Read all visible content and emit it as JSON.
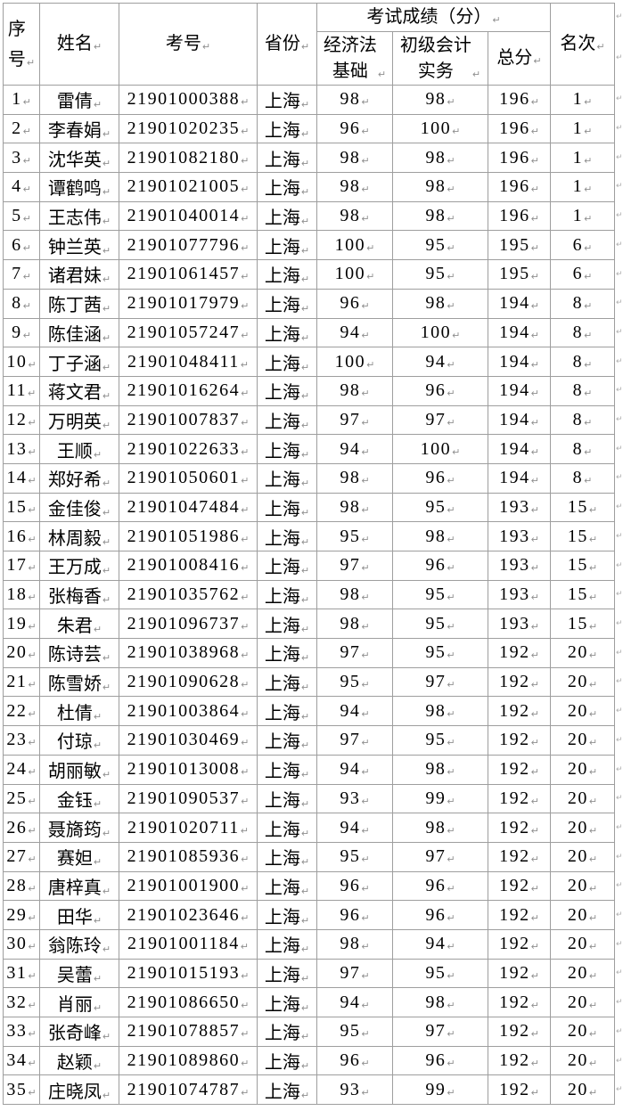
{
  "page": {
    "background_color": "#ffffff",
    "text_color": "#000000",
    "border_color": "#9e9e9e"
  },
  "table": {
    "mark_glyph": "↵",
    "mark_color": "#8f8f8f",
    "header": {
      "index": "序\n号",
      "name": "姓名",
      "exam_no": "考号",
      "province": "省份",
      "score_group": "考试成绩（分）",
      "econ_law": "经济法\n基础",
      "accounting": "初级会计\n实务",
      "total": "总分",
      "rank": "名次"
    },
    "rows": [
      [
        1,
        "雷倩",
        "21901000388",
        "上海",
        98,
        98,
        196,
        1
      ],
      [
        2,
        "李春娟",
        "21901020235",
        "上海",
        96,
        100,
        196,
        1
      ],
      [
        3,
        "沈华英",
        "21901082180",
        "上海",
        98,
        98,
        196,
        1
      ],
      [
        4,
        "谭鹤鸣",
        "21901021005",
        "上海",
        98,
        98,
        196,
        1
      ],
      [
        5,
        "王志伟",
        "21901040014",
        "上海",
        98,
        98,
        196,
        1
      ],
      [
        6,
        "钟兰英",
        "21901077796",
        "上海",
        100,
        95,
        195,
        6
      ],
      [
        7,
        "诸君妹",
        "21901061457",
        "上海",
        100,
        95,
        195,
        6
      ],
      [
        8,
        "陈丁茜",
        "21901017979",
        "上海",
        96,
        98,
        194,
        8
      ],
      [
        9,
        "陈佳涵",
        "21901057247",
        "上海",
        94,
        100,
        194,
        8
      ],
      [
        10,
        "丁子涵",
        "21901048411",
        "上海",
        100,
        94,
        194,
        8
      ],
      [
        11,
        "蒋文君",
        "21901016264",
        "上海",
        98,
        96,
        194,
        8
      ],
      [
        12,
        "万明英",
        "21901007837",
        "上海",
        97,
        97,
        194,
        8
      ],
      [
        13,
        "王顺",
        "21901022633",
        "上海",
        94,
        100,
        194,
        8
      ],
      [
        14,
        "郑好希",
        "21901050601",
        "上海",
        98,
        96,
        194,
        8
      ],
      [
        15,
        "金佳俊",
        "21901047484",
        "上海",
        98,
        95,
        193,
        15
      ],
      [
        16,
        "林周毅",
        "21901051986",
        "上海",
        95,
        98,
        193,
        15
      ],
      [
        17,
        "王万成",
        "21901008416",
        "上海",
        97,
        96,
        193,
        15
      ],
      [
        18,
        "张梅香",
        "21901035762",
        "上海",
        98,
        95,
        193,
        15
      ],
      [
        19,
        "朱君",
        "21901096737",
        "上海",
        98,
        95,
        193,
        15
      ],
      [
        20,
        "陈诗芸",
        "21901038968",
        "上海",
        97,
        95,
        192,
        20
      ],
      [
        21,
        "陈雪娇",
        "21901090628",
        "上海",
        95,
        97,
        192,
        20
      ],
      [
        22,
        "杜倩",
        "21901003864",
        "上海",
        94,
        98,
        192,
        20
      ],
      [
        23,
        "付琼",
        "21901030469",
        "上海",
        97,
        95,
        192,
        20
      ],
      [
        24,
        "胡丽敏",
        "21901013008",
        "上海",
        94,
        98,
        192,
        20
      ],
      [
        25,
        "金钰",
        "21901090537",
        "上海",
        93,
        99,
        192,
        20
      ],
      [
        26,
        "聂旖筠",
        "21901020711",
        "上海",
        94,
        98,
        192,
        20
      ],
      [
        27,
        "赛妲",
        "21901085936",
        "上海",
        95,
        97,
        192,
        20
      ],
      [
        28,
        "唐梓真",
        "21901001900",
        "上海",
        96,
        96,
        192,
        20
      ],
      [
        29,
        "田华",
        "21901023646",
        "上海",
        96,
        96,
        192,
        20
      ],
      [
        30,
        "翁陈玲",
        "21901001184",
        "上海",
        98,
        94,
        192,
        20
      ],
      [
        31,
        "吴蕾",
        "21901015193",
        "上海",
        97,
        95,
        192,
        20
      ],
      [
        32,
        "肖丽",
        "21901086650",
        "上海",
        94,
        98,
        192,
        20
      ],
      [
        33,
        "张奇峰",
        "21901078857",
        "上海",
        95,
        97,
        192,
        20
      ],
      [
        34,
        "赵颖",
        "21901089860",
        "上海",
        96,
        96,
        192,
        20
      ],
      [
        35,
        "庄晓凤",
        "21901074787",
        "上海",
        93,
        99,
        192,
        20
      ]
    ]
  }
}
